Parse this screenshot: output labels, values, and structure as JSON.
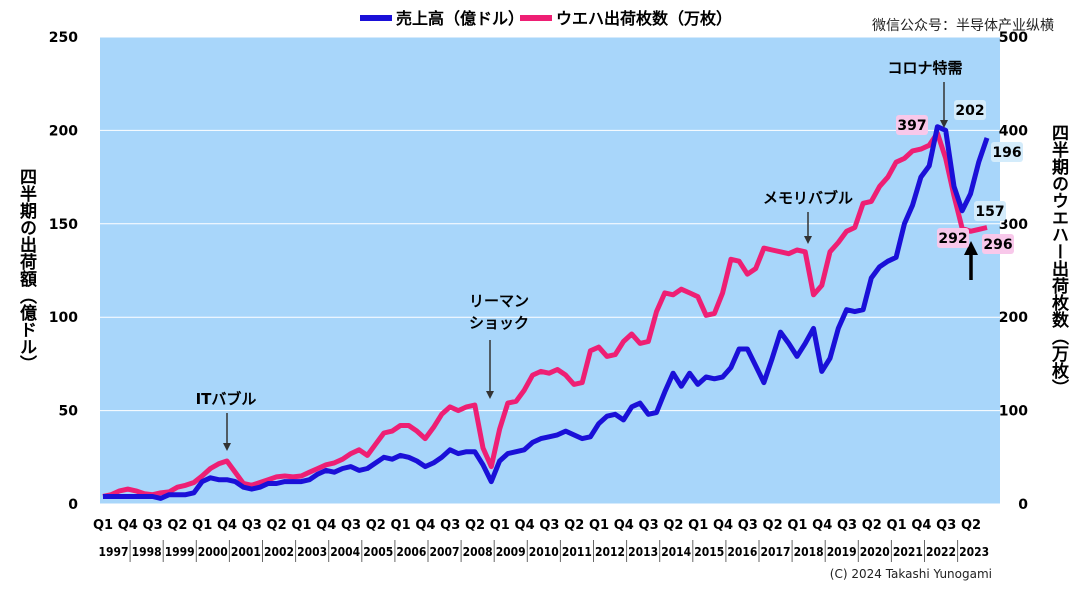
{
  "legend": {
    "revenue": "売上高（億ドル）",
    "wafer": "ウエハ出荷枚数（万枚）"
  },
  "watermark": "微信公众号：半导体产业纵横",
  "copyright": "(C) 2024 Takashi Yunogami",
  "colors": {
    "plot_bg": "#a8d6fa",
    "revenue": "#1a10d8",
    "wafer": "#ee1f74",
    "label_pink_bg": "#f8c8ea",
    "label_blue_bg": "#d4ecfb"
  },
  "chart_data": {
    "type": "line",
    "ylabel_left": "四半期の出荷額（億ドル）",
    "ylabel_right": "四半期のウエハー出荷枚数（万枚）",
    "ylim_left": [
      0,
      250
    ],
    "ylim_right": [
      0,
      500
    ],
    "yticks_left": [
      "0",
      "50",
      "100",
      "150",
      "200",
      "250"
    ],
    "yticks_right": [
      "0",
      "100",
      "200",
      "300",
      "400",
      "500"
    ],
    "grid": true,
    "legend_position": "top",
    "quarters": [
      "Q1",
      "Q2",
      "Q3",
      "Q4",
      "Q1",
      "Q2",
      "Q3",
      "Q4",
      "Q1",
      "Q2",
      "Q3",
      "Q4",
      "Q1",
      "Q2",
      "Q3",
      "Q4",
      "Q1",
      "Q2",
      "Q3",
      "Q4",
      "Q1",
      "Q2",
      "Q3",
      "Q4",
      "Q1",
      "Q2",
      "Q3",
      "Q4",
      "Q1",
      "Q2",
      "Q3",
      "Q4",
      "Q1",
      "Q2",
      "Q3",
      "Q4",
      "Q1",
      "Q2",
      "Q3",
      "Q4",
      "Q1",
      "Q2",
      "Q3",
      "Q4",
      "Q1",
      "Q2",
      "Q3",
      "Q4",
      "Q1",
      "Q2",
      "Q3",
      "Q4",
      "Q1",
      "Q2",
      "Q3",
      "Q4",
      "Q1",
      "Q2",
      "Q3",
      "Q4",
      "Q1",
      "Q2",
      "Q3",
      "Q4",
      "Q1",
      "Q2",
      "Q3",
      "Q4",
      "Q1",
      "Q2",
      "Q3",
      "Q4",
      "Q1",
      "Q2",
      "Q3",
      "Q4",
      "Q1",
      "Q2",
      "Q3",
      "Q4",
      "Q1",
      "Q2",
      "Q3",
      "Q4",
      "Q1",
      "Q2",
      "Q3",
      "Q4",
      "Q1",
      "Q2",
      "Q3",
      "Q4",
      "Q1",
      "Q2",
      "Q3",
      "Q4",
      "Q1",
      "Q2",
      "Q3",
      "Q4",
      "Q1",
      "Q2",
      "Q3",
      "Q4",
      "Q1",
      "Q2",
      "Q3",
      "Q4"
    ],
    "quarter_tick_labels": [
      "Q1",
      "Q4",
      "Q3",
      "Q2",
      "Q1",
      "Q4",
      "Q3",
      "Q2",
      "Q1",
      "Q4",
      "Q3",
      "Q2",
      "Q1",
      "Q4",
      "Q3",
      "Q2",
      "Q1",
      "Q4",
      "Q3",
      "Q2",
      "Q1",
      "Q4",
      "Q3",
      "Q2",
      "Q1",
      "Q4",
      "Q3",
      "Q2",
      "Q1",
      "Q4",
      "Q3",
      "Q2",
      "Q1",
      "Q4",
      "Q3",
      "Q2"
    ],
    "year_labels": [
      "1997",
      "1998",
      "1999",
      "2000",
      "2001",
      "2002",
      "2003",
      "2004",
      "2005",
      "2006",
      "2007",
      "2008",
      "2009",
      "2010",
      "2011",
      "2012",
      "2013",
      "2014",
      "2015",
      "2016",
      "2017",
      "2018",
      "2019",
      "2020",
      "2021",
      "2022",
      "2023"
    ],
    "series": [
      {
        "name": "売上高（億ドル）",
        "axis": "left",
        "values": [
          4,
          4,
          4,
          4,
          4,
          4,
          4,
          3,
          5,
          5,
          5,
          6,
          12,
          14,
          13,
          13,
          12,
          9,
          8,
          9,
          11,
          11,
          12,
          12,
          12,
          13,
          16,
          18,
          17,
          19,
          20,
          18,
          19,
          22,
          25,
          24,
          26,
          25,
          23,
          20,
          22,
          25,
          29,
          27,
          28,
          28,
          21,
          12,
          23,
          27,
          28,
          29,
          33,
          35,
          36,
          37,
          39,
          37,
          35,
          36,
          43,
          47,
          48,
          45,
          52,
          54,
          48,
          49,
          60,
          70,
          63,
          70,
          64,
          68,
          67,
          68,
          73,
          83,
          83,
          74,
          65,
          78,
          92,
          86,
          79,
          86,
          94,
          71,
          78,
          94,
          104,
          103,
          104,
          121,
          127,
          130,
          132,
          150,
          160,
          175,
          181,
          202,
          200,
          170,
          157,
          166,
          183,
          196
        ]
      },
      {
        "name": "ウエハ出荷枚数（万枚）",
        "axis": "right",
        "values": [
          8,
          10,
          14,
          16,
          14,
          11,
          10,
          12,
          13,
          18,
          20,
          23,
          30,
          38,
          43,
          46,
          34,
          22,
          20,
          23,
          26,
          29,
          30,
          29,
          30,
          34,
          38,
          42,
          44,
          48,
          54,
          58,
          52,
          64,
          76,
          78,
          84,
          84,
          78,
          70,
          82,
          96,
          104,
          100,
          104,
          106,
          60,
          40,
          80,
          108,
          110,
          122,
          138,
          142,
          140,
          144,
          138,
          128,
          130,
          164,
          168,
          158,
          160,
          174,
          182,
          172,
          174,
          206,
          226,
          224,
          230,
          226,
          222,
          202,
          204,
          226,
          262,
          260,
          246,
          252,
          274,
          272,
          270,
          268,
          272,
          270,
          224,
          234,
          270,
          280,
          292,
          296,
          322,
          324,
          340,
          350,
          366,
          370,
          378,
          380,
          384,
          397,
          370,
          330,
          295,
          292,
          294,
          296
        ]
      }
    ],
    "value_labels": {
      "revenue_peak": "202",
      "revenue_low": "157",
      "revenue_last": "196",
      "wafer_peak": "397",
      "wafer_low": "292",
      "wafer_last": "296"
    },
    "annotations": {
      "it_bubble": "ITバブル",
      "lehman_line1": "リーマン",
      "lehman_line2": "ショック",
      "memory_bubble": "メモリバブル",
      "corona": "コロナ特需"
    }
  }
}
